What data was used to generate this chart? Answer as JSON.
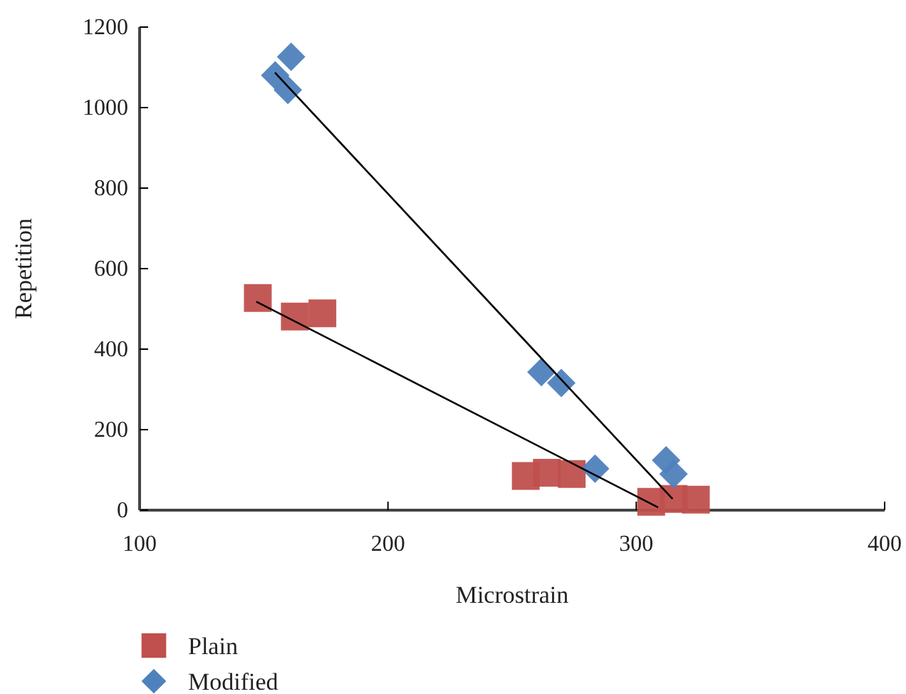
{
  "chart_data": {
    "type": "scatter",
    "xlabel": "Microstrain",
    "ylabel": "Repetition",
    "xlim": [
      100,
      400
    ],
    "xticks": [
      100,
      200,
      300,
      400
    ],
    "ylim": [
      0,
      1200
    ],
    "yticks": [
      0,
      200,
      400,
      600,
      800,
      1000,
      1200
    ],
    "grid": false,
    "legend": "bottom left",
    "series": [
      {
        "name": "Plain",
        "color": "#c0504d",
        "marker": "square",
        "x": [
          147.6,
          162.5,
          173.6,
          255.5,
          264,
          274,
          306,
          315,
          324
        ],
        "values": [
          527,
          481,
          489,
          85,
          93,
          90,
          21,
          28,
          26
        ]
      },
      {
        "name": "Modified",
        "color": "#4f81bd",
        "marker": "diamond",
        "x": [
          161,
          154.6,
          159.7,
          261.8,
          269.8,
          283.4,
          312,
          315
        ],
        "values": [
          1126,
          1080,
          1044,
          343,
          316,
          103,
          124,
          90
        ]
      },
      {
        "type": "line",
        "color": "#000000",
        "marker": "none",
        "x": [
          154.5,
          314.6
        ],
        "values": [
          1087,
          28
        ]
      },
      {
        "type": "line",
        "color": "#000000",
        "marker": "none",
        "x": [
          147,
          308.8
        ],
        "values": [
          518,
          7
        ]
      }
    ]
  }
}
